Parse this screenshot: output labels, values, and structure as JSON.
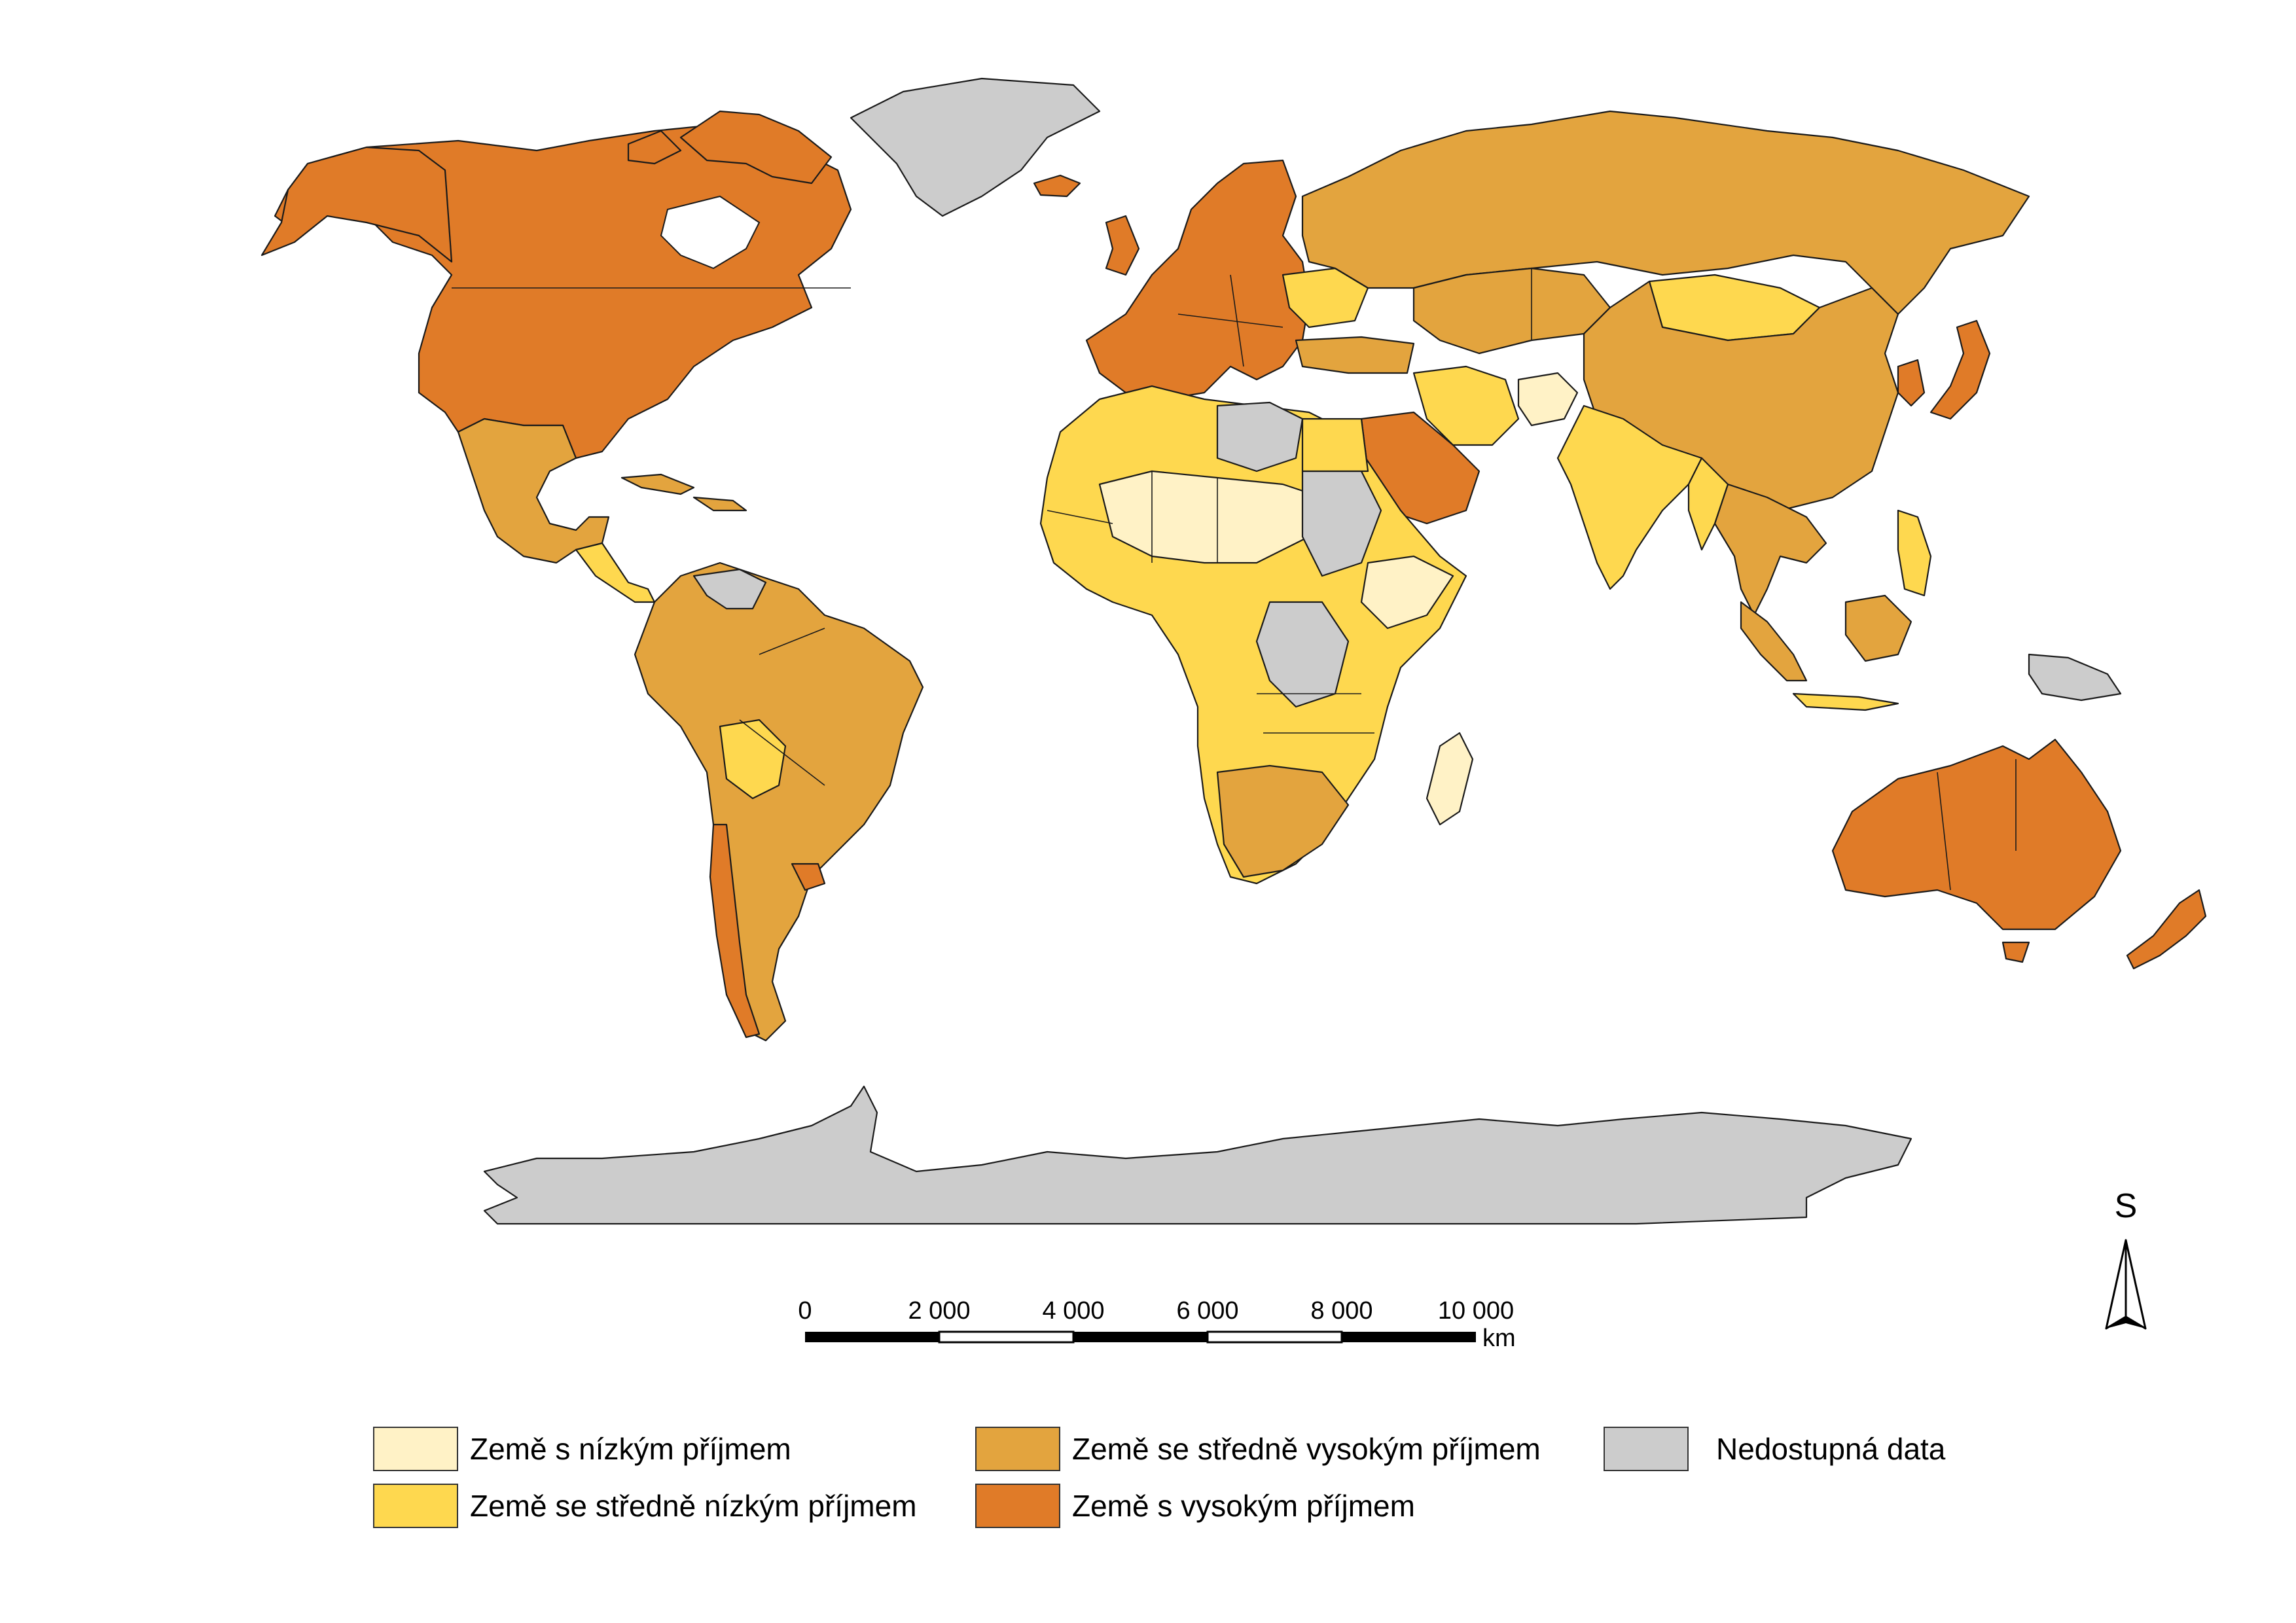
{
  "map": {
    "categories": [
      {
        "id": "low",
        "label": "Země s nízkým příjmem",
        "color": "#fff2c6"
      },
      {
        "id": "lower_middle",
        "label": "Země se středně nízkým příjmem",
        "color": "#fed84f"
      },
      {
        "id": "upper_middle",
        "label": "Země se středně vysokým příjmem",
        "color": "#e3a43e"
      },
      {
        "id": "high",
        "label": "Země s vysokým příjmem",
        "color": "#e07b28"
      },
      {
        "id": "no_data",
        "label": "Nedostupná data",
        "color": "#cccccc"
      }
    ],
    "scale_bar": {
      "ticks": [
        "0",
        "2 000",
        "4 000",
        "6 000",
        "8 000",
        "10 000"
      ],
      "unit": "km"
    },
    "north_arrow": {
      "label": "S",
      "icon": "north-arrow-icon"
    }
  }
}
